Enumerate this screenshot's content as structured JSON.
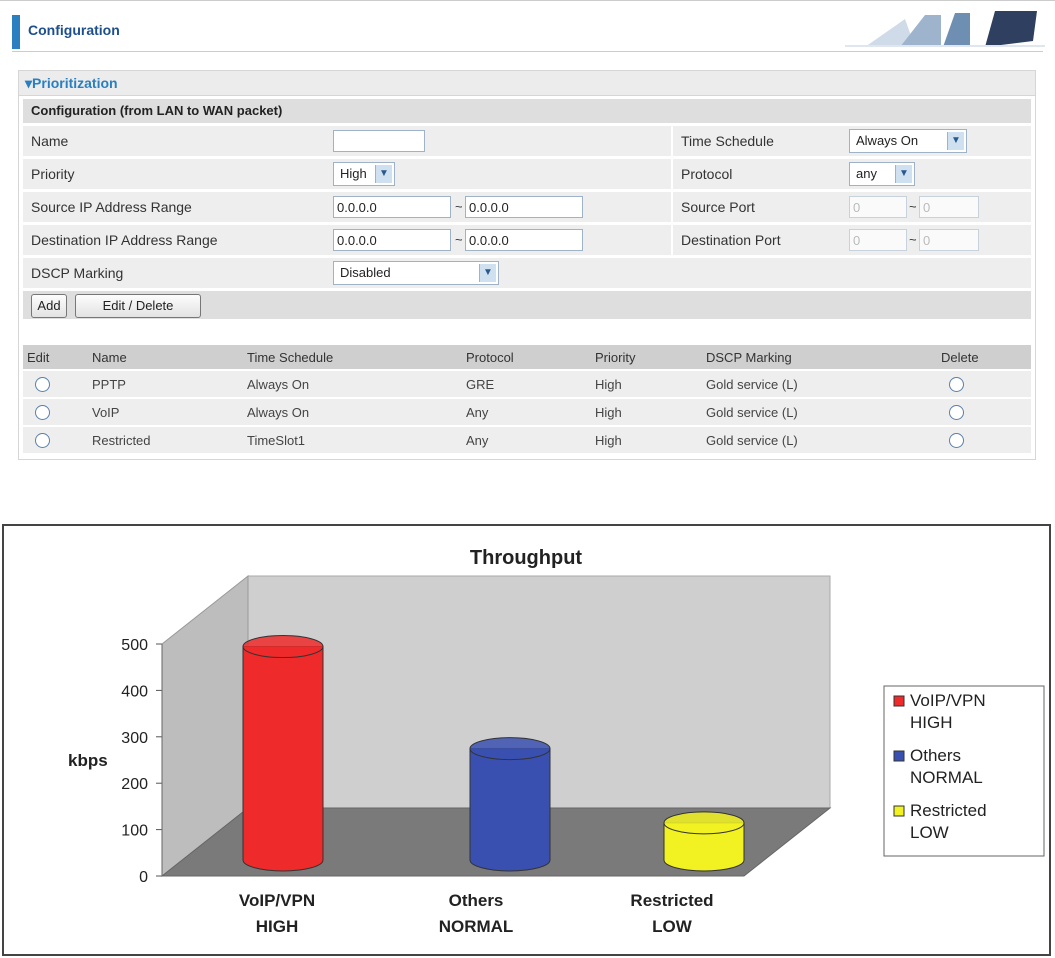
{
  "header": {
    "title": "Configuration"
  },
  "panel": {
    "title": "Prioritization",
    "section": "Configuration (from LAN to WAN packet)",
    "fields": {
      "name_label": "Name",
      "name_value": "",
      "time_schedule_label": "Time Schedule",
      "time_schedule_value": "Always On",
      "priority_label": "Priority",
      "priority_value": "High",
      "protocol_label": "Protocol",
      "protocol_value": "any",
      "src_ip_label": "Source IP Address Range",
      "src_ip_start": "0.0.0.0",
      "src_ip_end": "0.0.0.0",
      "src_port_label": "Source Port",
      "src_port_start": "0",
      "src_port_end": "0",
      "dst_ip_label": "Destination IP Address Range",
      "dst_ip_start": "0.0.0.0",
      "dst_ip_end": "0.0.0.0",
      "dst_port_label": "Destination Port",
      "dst_port_start": "0",
      "dst_port_end": "0",
      "dscp_label": "DSCP Marking",
      "dscp_value": "Disabled",
      "range_sep": "~"
    },
    "buttons": {
      "add": "Add",
      "edit_delete": "Edit / Delete"
    },
    "table": {
      "headers": [
        "Edit",
        "Name",
        "Time Schedule",
        "Protocol",
        "Priority",
        "DSCP Marking",
        "Delete"
      ],
      "rows": [
        {
          "name": "PPTP",
          "schedule": "Always On",
          "protocol": "GRE",
          "priority": "High",
          "dscp": "Gold service (L)"
        },
        {
          "name": "VoIP",
          "schedule": "Always On",
          "protocol": "Any",
          "priority": "High",
          "dscp": "Gold service (L)"
        },
        {
          "name": "Restricted",
          "schedule": "TimeSlot1",
          "protocol": "Any",
          "priority": "High",
          "dscp": "Gold service (L)"
        }
      ]
    }
  },
  "chart_data": {
    "type": "bar",
    "title": "Throughput",
    "ylabel": "kbps",
    "xlabel": "",
    "ylim": [
      0,
      500
    ],
    "yticks": [
      0,
      100,
      200,
      300,
      400,
      500
    ],
    "categories": [
      "VoIP/VPN HIGH",
      "Others NORMAL",
      "Restricted LOW"
    ],
    "category_lines": [
      [
        "VoIP/VPN",
        "HIGH"
      ],
      [
        "Others",
        "NORMAL"
      ],
      [
        "Restricted",
        "LOW"
      ]
    ],
    "values": [
      460,
      240,
      80
    ],
    "colors": [
      "#ee2a2a",
      "#3a50b0",
      "#f2f222"
    ],
    "legend": {
      "position": "right",
      "entries": [
        [
          "VoIP/VPN",
          "HIGH"
        ],
        [
          "Others",
          "NORMAL"
        ],
        [
          "Restricted",
          "LOW"
        ]
      ]
    },
    "grid": false
  }
}
